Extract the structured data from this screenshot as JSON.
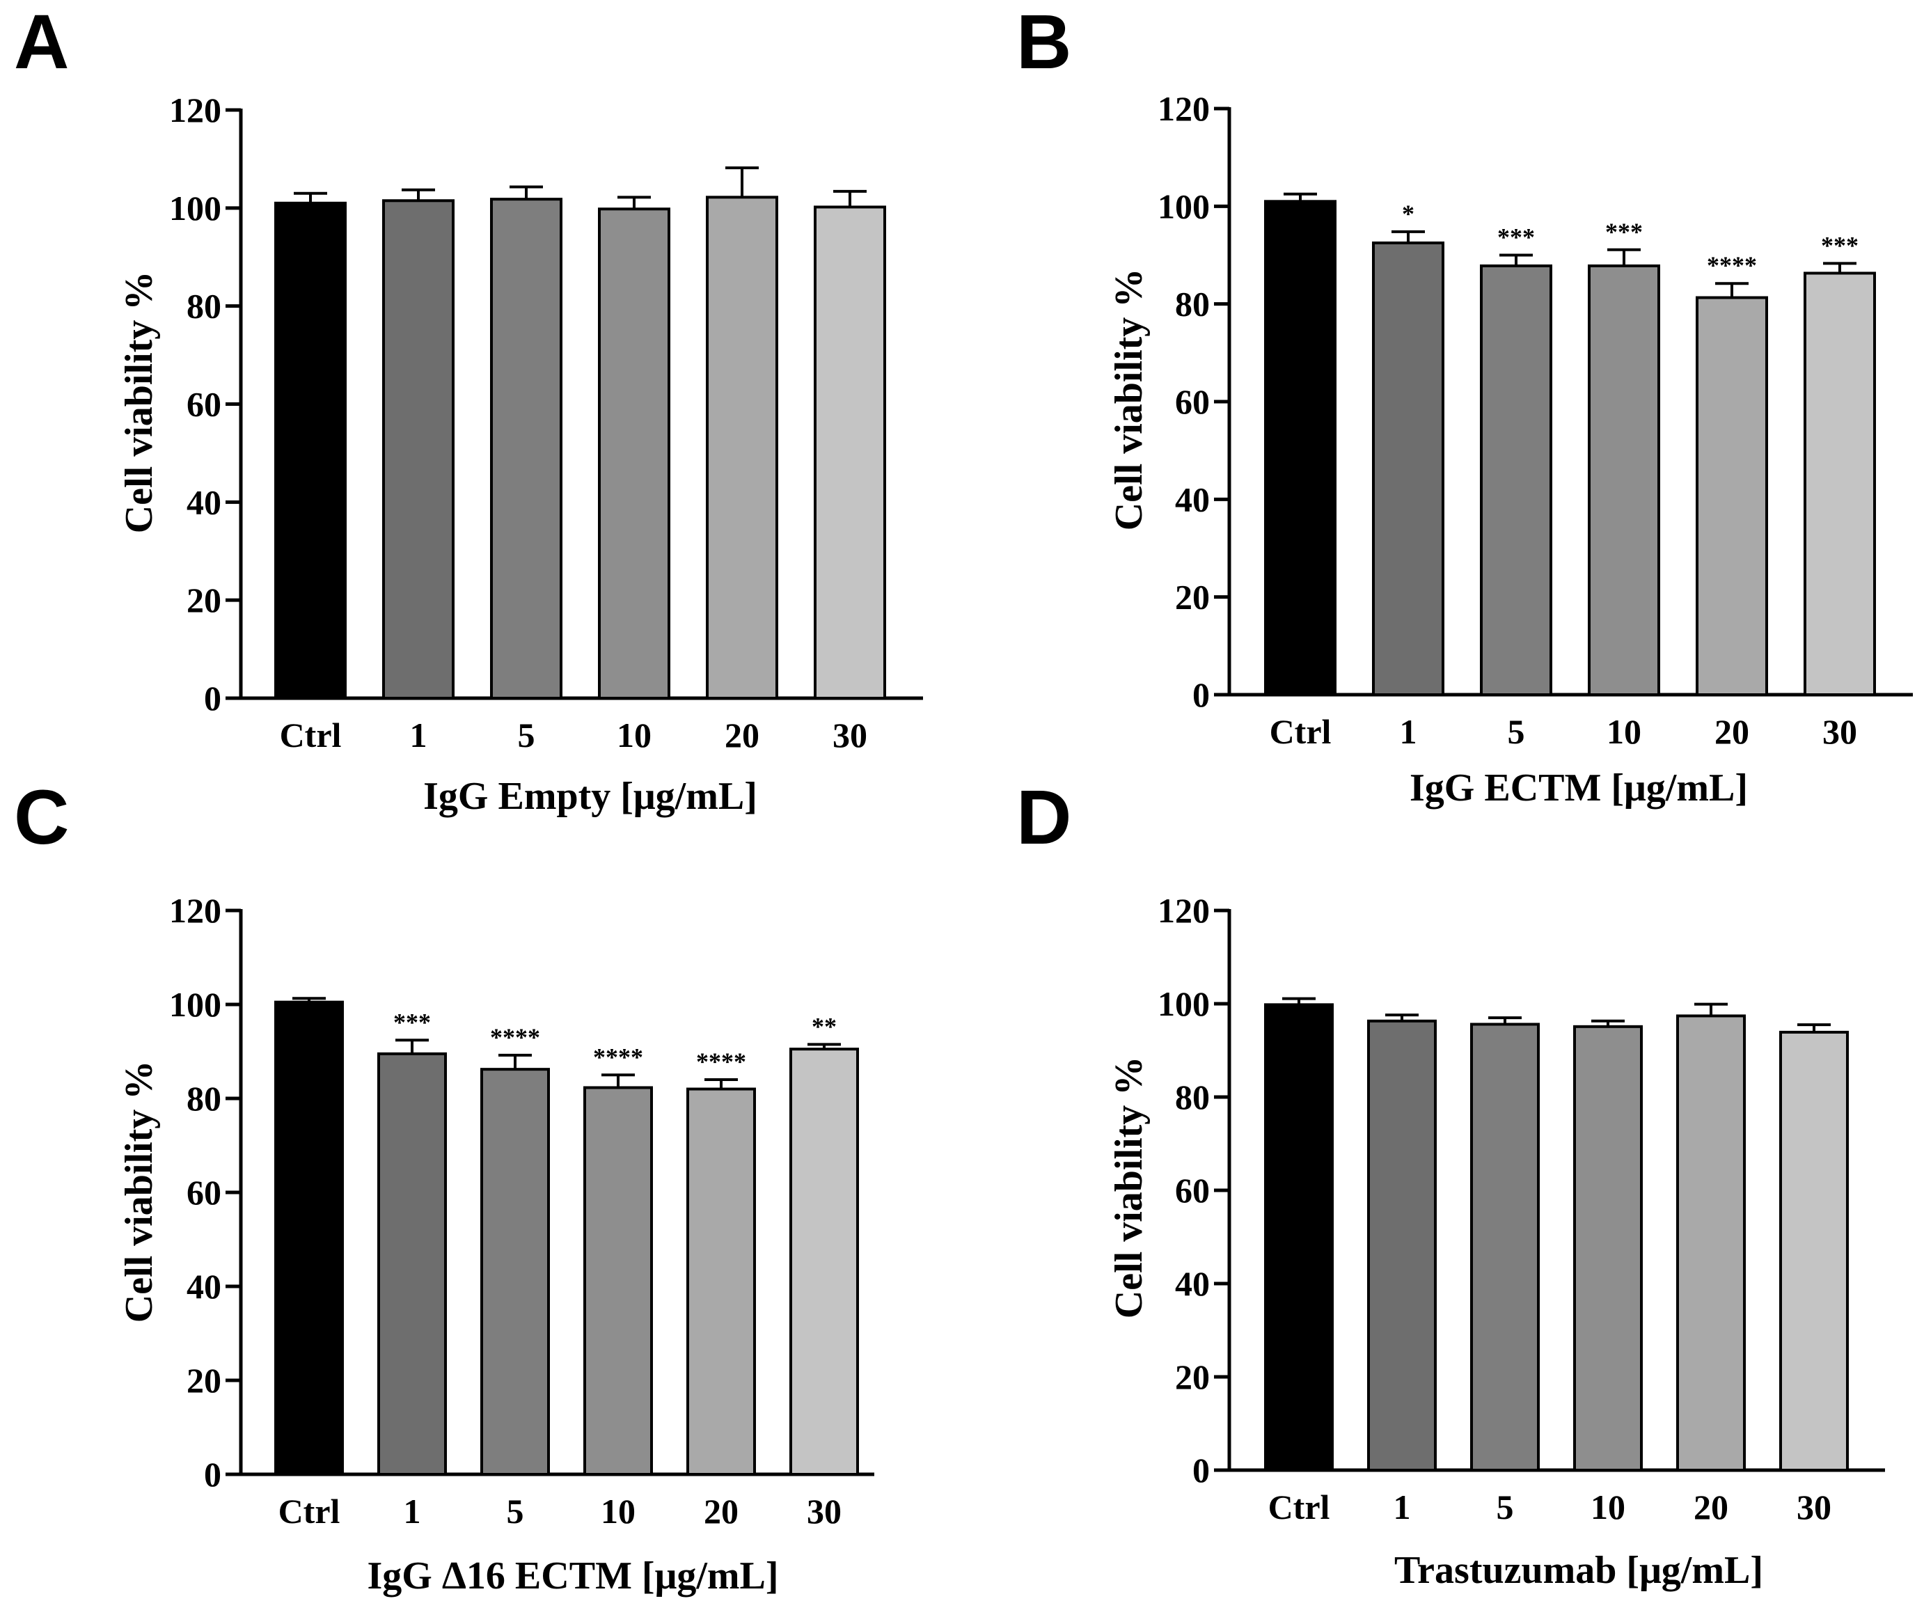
{
  "colors": {
    "axis": "#000000",
    "bar_fills": [
      "#000000",
      "#6e6e6e",
      "#7e7e7e",
      "#8e8e8e",
      "#a9a9a9",
      "#c4c4c4"
    ]
  },
  "chart_data": [
    {
      "panel": "A",
      "type": "bar",
      "title": "",
      "categories": [
        "Ctrl",
        "1",
        "5",
        "10",
        "20",
        "30"
      ],
      "values": [
        101,
        101.5,
        101.8,
        99.8,
        102.2,
        100.2
      ],
      "errors": [
        2,
        2.2,
        2.5,
        2.4,
        6,
        3.2
      ],
      "significance": [
        "",
        "",
        "",
        "",
        "",
        ""
      ],
      "xlabel": "IgG Empty [μg/mL]",
      "ylabel": "Cell viability %",
      "ylim": [
        0,
        120
      ],
      "yticks": [
        0,
        20,
        40,
        60,
        80,
        100,
        120
      ],
      "grid": false
    },
    {
      "panel": "B",
      "type": "bar",
      "title": "",
      "categories": [
        "Ctrl",
        "1",
        "5",
        "10",
        "20",
        "30"
      ],
      "values": [
        101,
        92.5,
        87.8,
        87.8,
        81.3,
        86.3
      ],
      "errors": [
        1.5,
        2.3,
        2.2,
        3.3,
        2.9,
        2
      ],
      "significance": [
        "",
        "*",
        "***",
        "***",
        "****",
        "***"
      ],
      "xlabel": "IgG ECTM [μg/mL]",
      "ylabel": "Cell viability %",
      "ylim": [
        0,
        120
      ],
      "yticks": [
        0,
        20,
        40,
        60,
        80,
        100,
        120
      ],
      "grid": false
    },
    {
      "panel": "C",
      "type": "bar",
      "title": "",
      "categories": [
        "Ctrl",
        "1",
        "5",
        "10",
        "20",
        "30"
      ],
      "values": [
        100.5,
        89.5,
        86.2,
        82.3,
        82,
        90.5
      ],
      "errors": [
        0.8,
        2.9,
        3,
        2.7,
        2,
        1
      ],
      "significance": [
        "",
        "***",
        "****",
        "****",
        "****",
        "**"
      ],
      "xlabel": "IgG Δ16 ECTM [μg/mL]",
      "ylabel": "Cell viability %",
      "ylim": [
        0,
        120
      ],
      "yticks": [
        0,
        20,
        40,
        60,
        80,
        100,
        120
      ],
      "grid": false
    },
    {
      "panel": "D",
      "type": "bar",
      "title": "",
      "categories": [
        "Ctrl",
        "1",
        "5",
        "10",
        "20",
        "30"
      ],
      "values": [
        99.8,
        96.3,
        95.6,
        95.1,
        97.4,
        93.9
      ],
      "errors": [
        1.3,
        1.3,
        1.4,
        1.2,
        2.5,
        1.6
      ],
      "significance": [
        "",
        "",
        "",
        "",
        "",
        ""
      ],
      "xlabel": "Trastuzumab [μg/mL]",
      "ylabel": "Cell viability %",
      "ylim": [
        0,
        120
      ],
      "yticks": [
        0,
        20,
        40,
        60,
        80,
        100,
        120
      ],
      "grid": false
    }
  ]
}
